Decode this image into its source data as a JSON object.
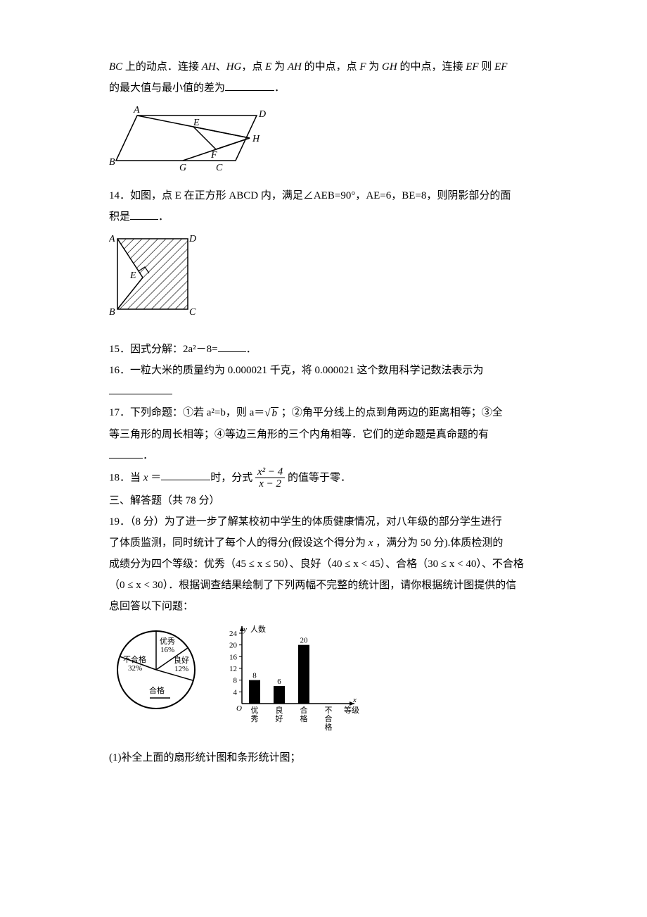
{
  "q13": {
    "line1_pre": "BC",
    "line1_mid1": " 上的动点．连接 ",
    "line1_AH": "AH",
    "line1_sep1": "、",
    "line1_HG": "HG",
    "line1_mid2": "，点 ",
    "line1_E": "E",
    "line1_mid3": " 为 ",
    "line1_AH2": "AH",
    "line1_mid4": " 的中点，点 ",
    "line1_F": "F",
    "line1_mid5": " 为 ",
    "line1_GH": "GH",
    "line1_mid6": " 的中点，连接 ",
    "line1_EF": "EF",
    "line1_mid7": " 则 ",
    "line1_EF2": "EF",
    "line2": "的最大值与最小值的差为",
    "period": "．",
    "svg": {
      "stroke": "#000000",
      "stroke_width": 1.5,
      "labels": {
        "A": "A",
        "B": "B",
        "C": "C",
        "D": "D",
        "E": "E",
        "F": "F",
        "G": "G",
        "H": "H"
      },
      "label_fontsize": 14
    }
  },
  "q14": {
    "num": "14．",
    "text1": "如图，点 E 在正方形 ABCD 内，满足∠AEB=90°，AE=6，BE=8，则阴影部分的面",
    "text2": "积是",
    "period": "．",
    "svg": {
      "stroke": "#000000",
      "stroke_width": 1.5,
      "labels": {
        "A": "A",
        "B": "B",
        "C": "C",
        "D": "D",
        "E": "E"
      },
      "label_fontsize": 14
    }
  },
  "q15": {
    "num": "15．",
    "text": "因式分解：2a²－8=",
    "period": "．"
  },
  "q16": {
    "num": "16．",
    "text": "一粒大米的质量约为 0.000021 千克，将 0.000021 这个数用科学记数法表示为"
  },
  "q17": {
    "num": "17．",
    "text1": "下列命题：①若 a²=b，则 a＝",
    "sqrt_radicand": "b",
    "text2": " ；②角平分线上的点到角两边的距离相等；③全",
    "text3": "等三角形的周长相等；④等边三角形的三个内角相等．它们的逆命题是真命题的有",
    "period": "．"
  },
  "q18": {
    "num": "18．",
    "text1": "当 ",
    "x": "x",
    "text2": " ＝",
    "text3": "时，分式 ",
    "frac_num": "x² − 4",
    "frac_den": "x − 2",
    "text4": " 的值等于零．"
  },
  "section3": "三、解答题（共 78 分）",
  "q19": {
    "num": "19．",
    "pts": "（8 分）",
    "t1": "为了进一步了解某校初中学生的体质健康情况，对八年级的部分学生进行",
    "t2a": "了体质监测，同时统计了每个人的得分(假设这个得分为 ",
    "t2x": "x",
    "t2b": " ，满分为 50 分).体质检测的",
    "t3": "成绩分为四个等级：优秀（45 ≤ x ≤ 50）、良好（40 ≤ x < 45）、合格（30 ≤ x < 40）、不合格",
    "t4": "（0 ≤ x < 30）．根据调查结果绘制了下列两幅不完整的统计图，请你根据统计图提供的信",
    "t5": "息回答以下问题：",
    "pie": {
      "labels": {
        "excellent": "优秀",
        "good": "良好",
        "pass": "合格",
        "fail": "不合格"
      },
      "percents": {
        "excellent": "16%",
        "good": "12%",
        "fail": "32%"
      },
      "label_fontsize": 11,
      "stroke": "#000000",
      "stroke_width": 1.5
    },
    "bar": {
      "ytitle": "人数",
      "xtitle": "等级",
      "xvar": "x",
      "yvar": "y",
      "yticks": [
        4,
        8,
        12,
        16,
        20,
        24
      ],
      "categories": [
        "优秀",
        "良好",
        "合格",
        "不合格"
      ],
      "shortcat": [
        "优\n秀",
        "良\n好",
        "合\n格",
        "不\n合\n格"
      ],
      "values": [
        8,
        6,
        20,
        null
      ],
      "value_labels": {
        "0": "8",
        "1": "6",
        "2": "20"
      },
      "bar_color": "#000000",
      "axis_color": "#000000",
      "axis_width": 1.5,
      "label_fontsize": 11,
      "ymax": 24
    },
    "sub1": "(1)补全上面的扇形统计图和条形统计图；"
  }
}
